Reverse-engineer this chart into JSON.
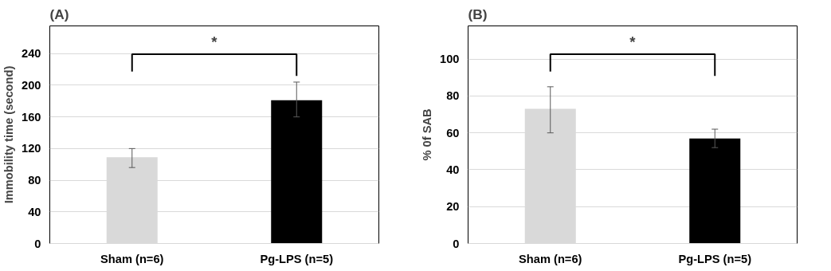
{
  "chart_data": [
    {
      "type": "bar",
      "title": "(A)",
      "ylabel": "Immobility time (second)",
      "categories": [
        "Sham (n=6)",
        "Pg-LPS (n=5)"
      ],
      "values": [
        109,
        181
      ],
      "colors": [
        "#d9d9d9",
        "#000000"
      ],
      "errors": [
        [
          96,
          120
        ],
        [
          160,
          204
        ]
      ],
      "ylim": [
        0,
        275
      ],
      "yticks": [
        0,
        40,
        80,
        120,
        160,
        200,
        240
      ],
      "grid": "y",
      "annotations": [
        "*"
      ]
    },
    {
      "type": "bar",
      "title": "(B)",
      "ylabel": "% 0f SAB",
      "categories": [
        "Sham (n=6)",
        "Pg-LPS (n=5)"
      ],
      "values": [
        73,
        57
      ],
      "colors": [
        "#d9d9d9",
        "#000000"
      ],
      "errors": [
        [
          60,
          85
        ],
        [
          52,
          62
        ]
      ],
      "ylim": [
        0,
        118
      ],
      "yticks": [
        0,
        20,
        40,
        60,
        80,
        100
      ],
      "grid": "y",
      "annotations": [
        "*"
      ]
    }
  ]
}
